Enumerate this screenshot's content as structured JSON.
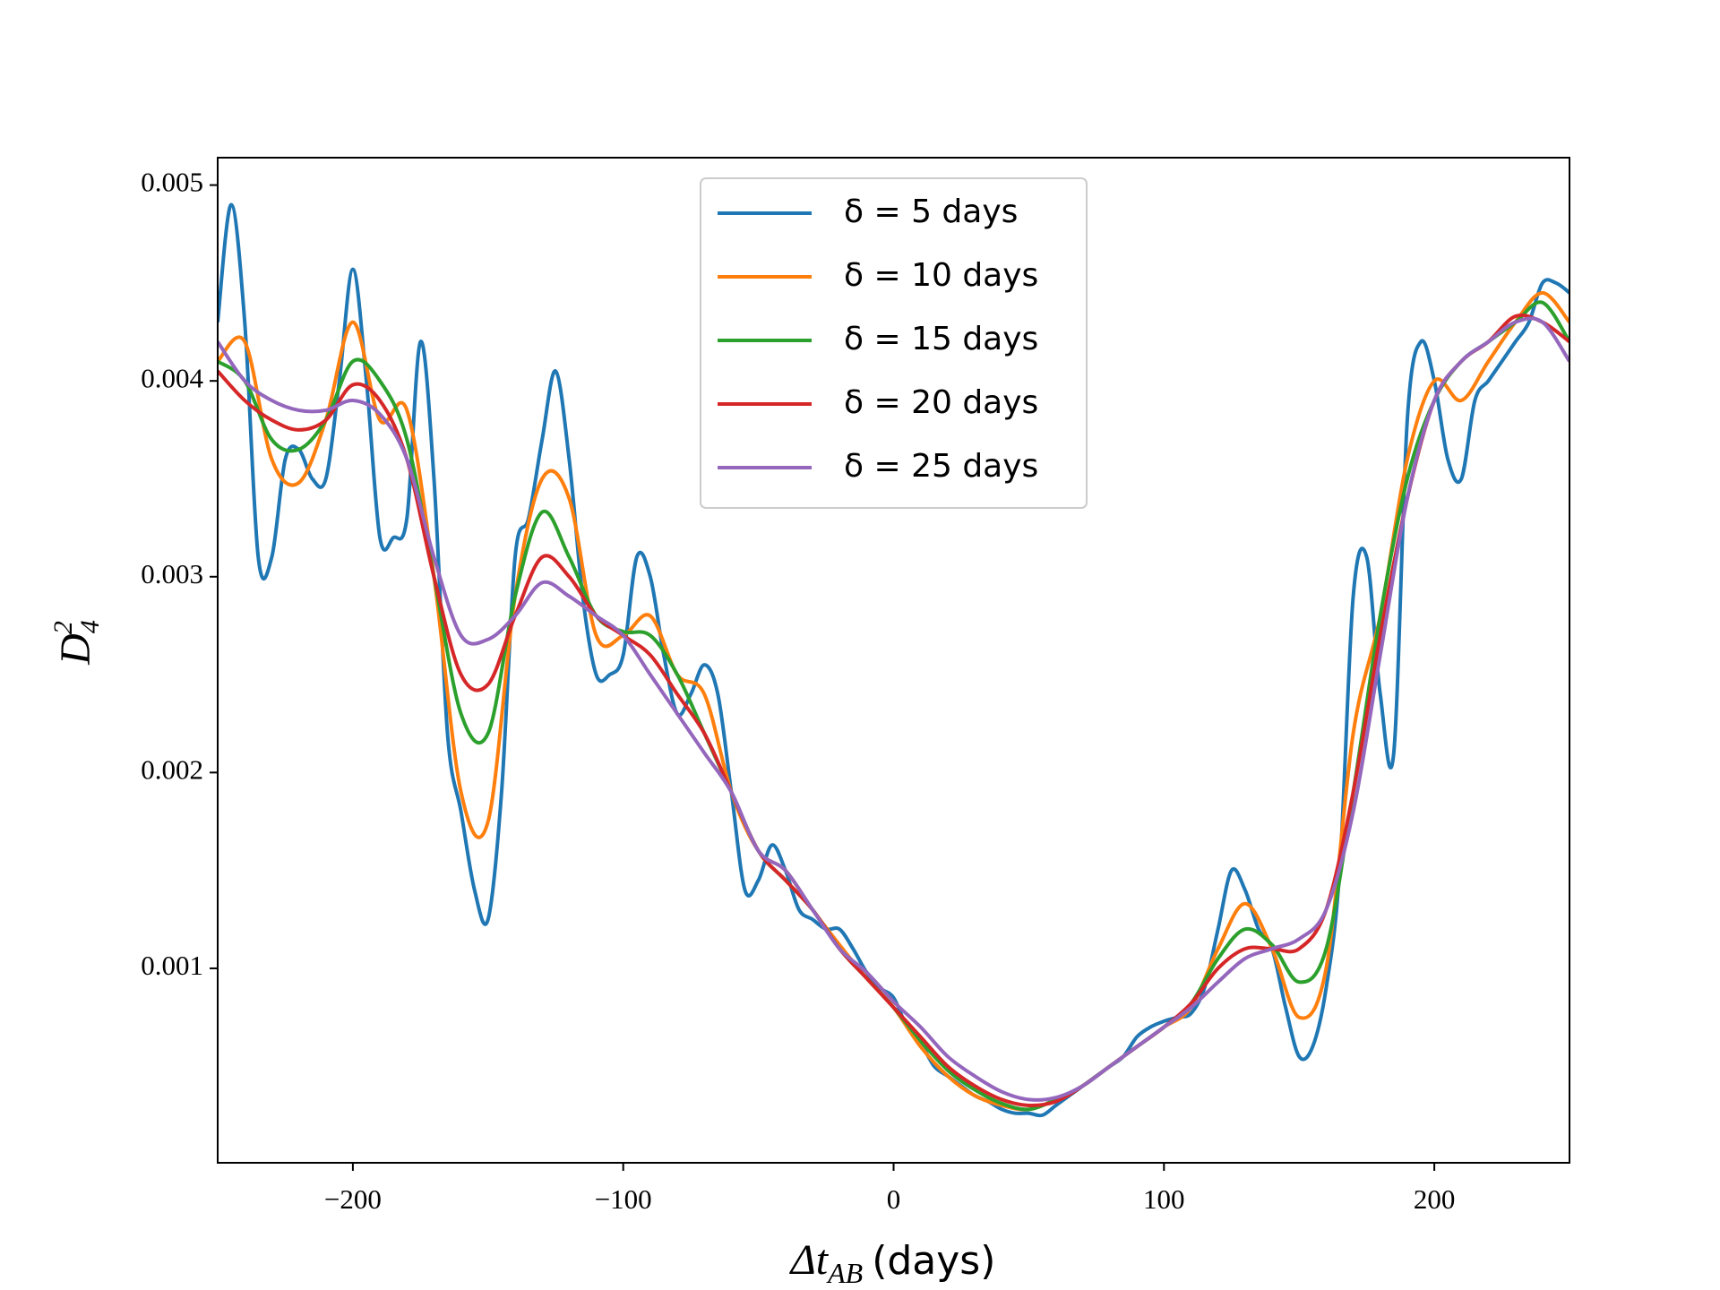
{
  "chart_data": {
    "type": "line",
    "x_label": {
      "main": "Δt",
      "sub": "AB",
      "unit": "(days)"
    },
    "y_label": {
      "main": "D",
      "sub": "4",
      "sup": "2"
    },
    "xlim": [
      -250,
      250
    ],
    "xticks": [
      {
        "value": -200,
        "label": "−200"
      },
      {
        "value": -100,
        "label": "−100"
      },
      0,
      100,
      200
    ],
    "ylim": [
      7e-06,
      0.00514
    ],
    "yticks": [
      0.001,
      0.002,
      0.003,
      0.004,
      0.005
    ],
    "grid": false,
    "legend": "upper center",
    "series": [
      {
        "name": "δ = 5 days",
        "color": "#1f77b4",
        "x": [
          -250,
          -245,
          -240,
          -235,
          -230,
          -225,
          -220,
          -215,
          -210,
          -205,
          -200,
          -195,
          -190,
          -185,
          -180,
          -175,
          -170,
          -165,
          -160,
          -155,
          -150,
          -145,
          -140,
          -135,
          -130,
          -125,
          -120,
          -115,
          -110,
          -105,
          -100,
          -95,
          -90,
          -85,
          -80,
          -75,
          -70,
          -65,
          -60,
          -55,
          -50,
          -45,
          -40,
          -35,
          -30,
          -25,
          -20,
          -15,
          -10,
          -5,
          0,
          5,
          10,
          15,
          20,
          25,
          30,
          35,
          40,
          45,
          50,
          55,
          60,
          65,
          70,
          75,
          80,
          85,
          90,
          95,
          100,
          105,
          110,
          115,
          120,
          125,
          130,
          135,
          140,
          145,
          150,
          155,
          160,
          165,
          170,
          175,
          180,
          185,
          190,
          195,
          200,
          205,
          210,
          215,
          220,
          225,
          230,
          235,
          240,
          245,
          250
        ],
        "values": [
          0.0043,
          0.0049,
          0.0043,
          0.0031,
          0.0031,
          0.0036,
          0.00365,
          0.0035,
          0.0035,
          0.004,
          0.00457,
          0.004,
          0.0032,
          0.0032,
          0.0033,
          0.0042,
          0.0035,
          0.0022,
          0.0018,
          0.0014,
          0.00125,
          0.0019,
          0.0031,
          0.0033,
          0.0037,
          0.00405,
          0.0036,
          0.0029,
          0.0025,
          0.0025,
          0.0026,
          0.0031,
          0.003,
          0.0026,
          0.0023,
          0.0024,
          0.00255,
          0.0024,
          0.0019,
          0.0014,
          0.00145,
          0.00163,
          0.0015,
          0.0013,
          0.00125,
          0.0012,
          0.0012,
          0.0011,
          0.00098,
          0.0009,
          0.00085,
          0.0007,
          0.00062,
          0.0005,
          0.00045,
          0.0004,
          0.00035,
          0.00032,
          0.00028,
          0.00026,
          0.00026,
          0.00025,
          0.0003,
          0.00035,
          0.0004,
          0.00045,
          0.0005,
          0.00055,
          0.00065,
          0.0007,
          0.00073,
          0.00075,
          0.00077,
          0.0009,
          0.0012,
          0.0015,
          0.0014,
          0.0012,
          0.0011,
          0.0008,
          0.00055,
          0.0006,
          0.0009,
          0.0015,
          0.0029,
          0.0031,
          0.0024,
          0.0021,
          0.0038,
          0.0042,
          0.004,
          0.0036,
          0.0035,
          0.0039,
          0.004,
          0.0041,
          0.0042,
          0.0043,
          0.0045,
          0.0045,
          0.00445
        ]
      },
      {
        "name": "δ = 10 days",
        "color": "#ff7f0e",
        "x": [
          -250,
          -240,
          -230,
          -220,
          -210,
          -200,
          -190,
          -180,
          -170,
          -160,
          -150,
          -140,
          -130,
          -120,
          -110,
          -100,
          -90,
          -80,
          -70,
          -60,
          -50,
          -40,
          -30,
          -20,
          -10,
          0,
          10,
          20,
          30,
          40,
          50,
          60,
          70,
          80,
          90,
          100,
          110,
          120,
          130,
          140,
          150,
          160,
          170,
          180,
          190,
          200,
          210,
          220,
          230,
          240,
          250
        ],
        "values": [
          0.0041,
          0.0042,
          0.0036,
          0.00348,
          0.0038,
          0.0043,
          0.0038,
          0.00385,
          0.003,
          0.0019,
          0.00175,
          0.0029,
          0.0035,
          0.0034,
          0.0027,
          0.0027,
          0.0028,
          0.0025,
          0.0024,
          0.0019,
          0.0016,
          0.0015,
          0.0013,
          0.00112,
          0.00095,
          0.0008,
          0.0006,
          0.00045,
          0.00035,
          0.0003,
          0.00028,
          0.00033,
          0.0004,
          0.0005,
          0.0006,
          0.0007,
          0.0008,
          0.0011,
          0.00133,
          0.0011,
          0.00075,
          0.001,
          0.0022,
          0.0028,
          0.0036,
          0.004,
          0.0039,
          0.0041,
          0.0043,
          0.00445,
          0.0043
        ]
      },
      {
        "name": "δ = 15 days",
        "color": "#2ca02c",
        "x": [
          -250,
          -240,
          -230,
          -220,
          -210,
          -200,
          -190,
          -180,
          -170,
          -160,
          -150,
          -140,
          -130,
          -120,
          -110,
          -100,
          -90,
          -80,
          -70,
          -60,
          -50,
          -40,
          -30,
          -20,
          -10,
          0,
          10,
          20,
          30,
          40,
          50,
          60,
          70,
          80,
          90,
          100,
          110,
          120,
          130,
          140,
          150,
          160,
          170,
          180,
          190,
          200,
          210,
          220,
          230,
          240,
          250
        ],
        "values": [
          0.0041,
          0.004,
          0.0037,
          0.00365,
          0.0038,
          0.0041,
          0.004,
          0.0037,
          0.003,
          0.0023,
          0.0022,
          0.0029,
          0.00333,
          0.0031,
          0.0028,
          0.00272,
          0.0027,
          0.0025,
          0.0022,
          0.0019,
          0.0016,
          0.00145,
          0.0013,
          0.0011,
          0.00095,
          0.0008,
          0.00063,
          0.00048,
          0.00038,
          0.00031,
          0.00028,
          0.00033,
          0.0004,
          0.0005,
          0.0006,
          0.0007,
          0.00082,
          0.00105,
          0.0012,
          0.00112,
          0.00093,
          0.0011,
          0.0019,
          0.0028,
          0.0035,
          0.0039,
          0.0041,
          0.0042,
          0.0043,
          0.0044,
          0.0042
        ]
      },
      {
        "name": "δ = 20 days",
        "color": "#d62728",
        "x": [
          -250,
          -240,
          -230,
          -220,
          -210,
          -200,
          -190,
          -180,
          -170,
          -160,
          -150,
          -140,
          -130,
          -120,
          -110,
          -100,
          -90,
          -80,
          -70,
          -60,
          -50,
          -40,
          -30,
          -20,
          -10,
          0,
          10,
          20,
          30,
          40,
          50,
          60,
          70,
          80,
          90,
          100,
          110,
          120,
          130,
          140,
          150,
          160,
          170,
          180,
          190,
          200,
          210,
          220,
          230,
          240,
          250
        ],
        "values": [
          0.00405,
          0.0039,
          0.0038,
          0.00375,
          0.0038,
          0.00398,
          0.0039,
          0.0036,
          0.003,
          0.0025,
          0.00245,
          0.0028,
          0.0031,
          0.003,
          0.0028,
          0.0027,
          0.0026,
          0.0024,
          0.0022,
          0.0019,
          0.0016,
          0.00145,
          0.0013,
          0.0011,
          0.00095,
          0.0008,
          0.00065,
          0.0005,
          0.0004,
          0.00033,
          0.0003,
          0.00032,
          0.0004,
          0.0005,
          0.0006,
          0.0007,
          0.00082,
          0.001,
          0.0011,
          0.0011,
          0.0011,
          0.0013,
          0.0019,
          0.0027,
          0.0034,
          0.0039,
          0.0041,
          0.0042,
          0.00433,
          0.0043,
          0.0042
        ]
      },
      {
        "name": "δ = 25 days",
        "color": "#9467bd",
        "x": [
          -250,
          -240,
          -230,
          -220,
          -210,
          -200,
          -190,
          -180,
          -170,
          -160,
          -150,
          -140,
          -130,
          -120,
          -110,
          -100,
          -90,
          -80,
          -70,
          -60,
          -50,
          -40,
          -30,
          -20,
          -10,
          0,
          10,
          20,
          30,
          40,
          50,
          60,
          70,
          80,
          90,
          100,
          110,
          120,
          130,
          140,
          150,
          160,
          170,
          180,
          190,
          200,
          210,
          220,
          230,
          240,
          250
        ],
        "values": [
          0.0042,
          0.004,
          0.0039,
          0.00385,
          0.00385,
          0.0039,
          0.00383,
          0.0036,
          0.0031,
          0.0027,
          0.00268,
          0.0028,
          0.00297,
          0.0029,
          0.0028,
          0.0027,
          0.0025,
          0.0023,
          0.0021,
          0.0019,
          0.0016,
          0.0015,
          0.0013,
          0.0011,
          0.00098,
          0.00083,
          0.0007,
          0.00055,
          0.00045,
          0.00037,
          0.00033,
          0.00034,
          0.0004,
          0.0005,
          0.0006,
          0.0007,
          0.0008,
          0.00093,
          0.00105,
          0.0011,
          0.00115,
          0.0013,
          0.0018,
          0.0026,
          0.0034,
          0.0039,
          0.0041,
          0.0042,
          0.0043,
          0.0043,
          0.0041
        ]
      }
    ]
  }
}
